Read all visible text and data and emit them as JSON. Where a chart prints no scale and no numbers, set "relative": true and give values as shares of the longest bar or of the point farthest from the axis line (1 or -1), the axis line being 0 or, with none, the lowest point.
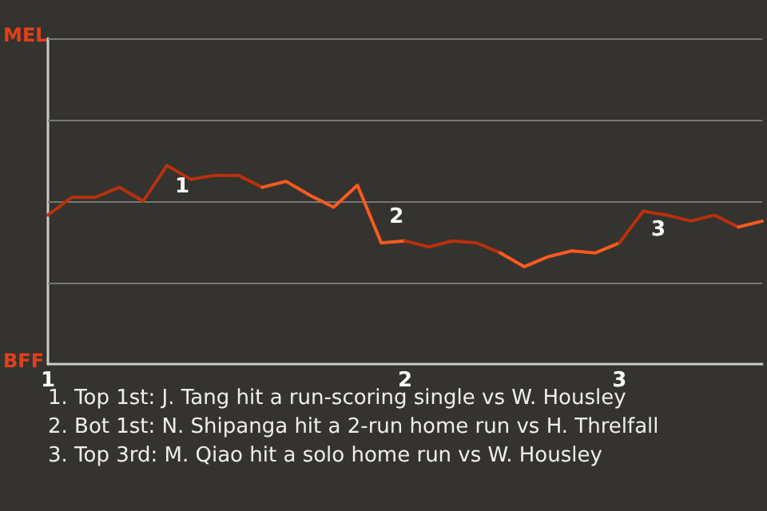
{
  "chart_data": {
    "type": "line",
    "relative": true,
    "categories": [
      "1",
      null,
      null,
      null,
      null,
      null,
      null,
      null,
      null,
      null,
      null,
      null,
      null,
      null,
      null,
      "2",
      null,
      null,
      null,
      null,
      null,
      null,
      null,
      null,
      "3",
      null,
      null,
      null,
      null,
      null,
      null
    ],
    "marker": "none",
    "line_style": "solid",
    "ref_lines": [
      {
        "axis": "y",
        "value": 0.41,
        "color": "#777777"
      },
      {
        "axis": "y",
        "value": 0.82,
        "color": "#777777"
      },
      {
        "axis": "y",
        "value": 1.23,
        "color": "#777777"
      },
      {
        "axis": "y",
        "value": 1.64,
        "color": "#777777"
      }
    ],
    "series": [
      {
        "color": "#b8300c",
        "values": [
          0.75,
          0.84,
          0.84,
          0.89,
          0.82,
          1,
          0.93,
          0.95,
          0.95,
          0.89,
          null,
          null,
          null,
          null,
          null,
          null,
          null,
          null,
          null,
          null,
          null,
          null,
          null,
          null,
          null,
          null,
          null,
          null,
          null,
          null,
          null
        ]
      },
      {
        "color": "#ff5a1f",
        "values": [
          null,
          null,
          null,
          null,
          null,
          null,
          null,
          null,
          null,
          0.89,
          0.92,
          0.85,
          0.79,
          0.9,
          0.61,
          0.62,
          null,
          null,
          null,
          null,
          null,
          null,
          null,
          null,
          null,
          null,
          null,
          null,
          null,
          null,
          null
        ]
      },
      {
        "color": "#b8300c",
        "values": [
          null,
          null,
          null,
          null,
          null,
          null,
          null,
          null,
          null,
          null,
          null,
          null,
          null,
          null,
          null,
          0.62,
          0.59,
          0.62,
          0.61,
          0.56,
          null,
          null,
          null,
          null,
          null,
          null,
          null,
          null,
          null,
          null,
          null
        ]
      },
      {
        "color": "#ff5a1f",
        "values": [
          null,
          null,
          null,
          null,
          null,
          null,
          null,
          null,
          null,
          null,
          null,
          null,
          null,
          null,
          null,
          null,
          null,
          null,
          null,
          0.56,
          0.49,
          0.54,
          0.57,
          0.56,
          0.61,
          null,
          null,
          null,
          null,
          null,
          null
        ]
      },
      {
        "color": "#b8300c",
        "values": [
          null,
          null,
          null,
          null,
          null,
          null,
          null,
          null,
          null,
          null,
          null,
          null,
          null,
          null,
          null,
          null,
          null,
          null,
          null,
          null,
          null,
          null,
          null,
          null,
          0.61,
          0.77,
          0.75,
          0.72,
          0.75,
          0.69,
          null
        ]
      },
      {
        "color": "#ff5a1f",
        "values": [
          null,
          null,
          null,
          null,
          null,
          null,
          null,
          null,
          null,
          null,
          null,
          null,
          null,
          null,
          null,
          null,
          null,
          null,
          null,
          null,
          null,
          null,
          null,
          null,
          null,
          null,
          null,
          null,
          null,
          0.69,
          0.72
        ]
      }
    ],
    "annotations": [
      "MEL",
      "BFF",
      "1",
      "2",
      "3",
      "1. Top 1st: J. Tang hit a run-scoring single vs W. Housley",
      "2. Bot 1st: N. Shipanga hit a 2-run home run vs H. Threlfall",
      "3. Top 3rd: M. Qiao hit a solo home run vs W. Housley"
    ]
  }
}
